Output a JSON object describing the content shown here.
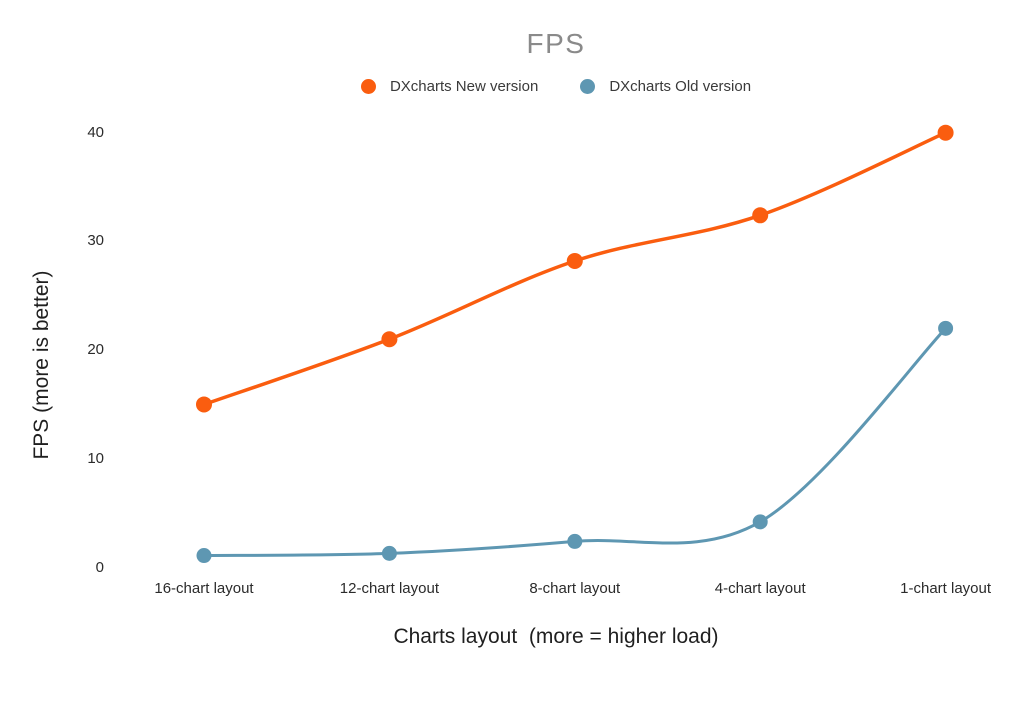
{
  "chart_data": {
    "type": "line",
    "title": "FPS",
    "categories": [
      "16-chart layout",
      "12-chart layout",
      "8-chart layout",
      "4-chart layout",
      "1-chart layout"
    ],
    "series": [
      {
        "name": "DXcharts New version",
        "color": "#FA5D0F",
        "marker_radius": 8,
        "line_width": 3.5,
        "values": [
          15,
          21,
          28.2,
          32.4,
          40
        ]
      },
      {
        "name": "DXcharts Old version",
        "color": "#5E97B2",
        "marker_radius": 7.5,
        "line_width": 3,
        "values": [
          1.1,
          1.3,
          2.4,
          4.2,
          22
        ]
      }
    ],
    "xlabel": "Charts layout  (more = higher load)",
    "ylabel": "FPS (more is better)",
    "ylim": [
      0,
      40
    ],
    "yticks": [
      0,
      10,
      20,
      30,
      40
    ],
    "grid": false,
    "legend_position": "top",
    "background": "#ffffff",
    "title_color": "#8a8a8a",
    "text_color": "#2b2b2b",
    "curve": "smooth"
  }
}
